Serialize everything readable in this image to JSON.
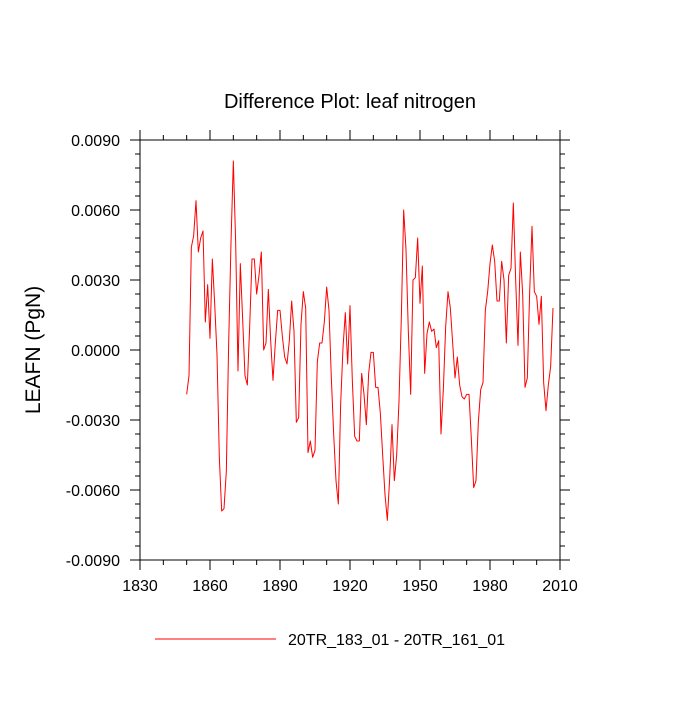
{
  "chart_data": {
    "type": "line",
    "title": "Difference Plot: leaf nitrogen",
    "xlabel": "",
    "ylabel": "LEAFN  (PgN)",
    "xlim": [
      1830,
      2010
    ],
    "ylim": [
      -0.009,
      0.009
    ],
    "x_ticks": [
      1830,
      1860,
      1890,
      1920,
      1950,
      1980,
      2010
    ],
    "x_tick_labels": [
      "1830",
      "1860",
      "1890",
      "1920",
      "1950",
      "1980",
      "2010"
    ],
    "y_ticks": [
      -0.009,
      -0.006,
      -0.003,
      0.0,
      0.003,
      0.006,
      0.009
    ],
    "y_tick_labels": [
      "-0.0090",
      "-0.0060",
      "-0.0030",
      "0.0000",
      "0.0030",
      "0.0060",
      "0.0090"
    ],
    "x_minor_step": 10,
    "y_minor_step": 0.0006,
    "legend_position": "bottom-center",
    "series": [
      {
        "name": "20TR_183_01 - 20TR_161_01",
        "color": "#ff0000",
        "x_start": 1850,
        "x_step": 1,
        "values": [
          -0.0019,
          -0.0011,
          0.0044,
          0.0049,
          0.0064,
          0.0042,
          0.0048,
          0.0051,
          0.0012,
          0.0028,
          0.0005,
          0.0039,
          0.002,
          -0.0002,
          -0.0046,
          -0.0069,
          -0.0068,
          -0.0052,
          0.0003,
          0.0046,
          0.0081,
          0.0046,
          -0.0009,
          0.0037,
          0.0013,
          -0.0011,
          -0.0015,
          0.001,
          0.0039,
          0.0039,
          0.0024,
          0.0032,
          0.0042,
          0.0,
          0.0003,
          0.0026,
          0.0004,
          -0.0013,
          0.0003,
          0.0017,
          0.0017,
          0.0006,
          -0.0003,
          -0.0006,
          0.0004,
          0.0021,
          0.0008,
          -0.0031,
          -0.0029,
          0.0011,
          0.0025,
          0.0018,
          -0.0044,
          -0.0039,
          -0.0046,
          -0.0043,
          -0.0005,
          0.0003,
          0.0003,
          0.0012,
          0.0027,
          0.0017,
          -0.0012,
          -0.0036,
          -0.0056,
          -0.0066,
          -0.0023,
          0.0001,
          0.0016,
          -0.0006,
          0.0019,
          -0.0013,
          -0.0037,
          -0.0039,
          -0.0039,
          -0.001,
          -0.0019,
          -0.0032,
          -0.001,
          -0.0001,
          -0.0001,
          -0.0016,
          -0.0016,
          -0.0027,
          -0.0045,
          -0.0062,
          -0.0073,
          -0.0055,
          -0.0032,
          -0.0056,
          -0.0045,
          -0.0022,
          0.0014,
          0.006,
          0.0043,
          0.0008,
          -0.0019,
          0.003,
          0.0031,
          0.0048,
          0.002,
          0.0036,
          -0.001,
          0.0007,
          0.0012,
          0.0008,
          0.0009,
          0.0001,
          0.0004,
          -0.0036,
          -0.0017,
          0.001,
          0.0025,
          0.0018,
          0.0003,
          -0.0012,
          -0.0003,
          -0.0015,
          -0.002,
          -0.0021,
          -0.0019,
          -0.0019,
          -0.0038,
          -0.0059,
          -0.0056,
          -0.0031,
          -0.0017,
          -0.0014,
          0.0017,
          0.0025,
          0.0037,
          0.0045,
          0.0038,
          0.0021,
          0.0021,
          0.0038,
          0.003,
          0.0003,
          0.0032,
          0.0035,
          0.0063,
          0.003,
          0.0002,
          0.0042,
          0.0024,
          -0.0016,
          -0.0012,
          0.0025,
          0.0053,
          0.0025,
          0.0023,
          0.0011,
          0.0023,
          -0.0014,
          -0.0026,
          -0.0015,
          -0.0007,
          0.0018
        ]
      }
    ]
  }
}
